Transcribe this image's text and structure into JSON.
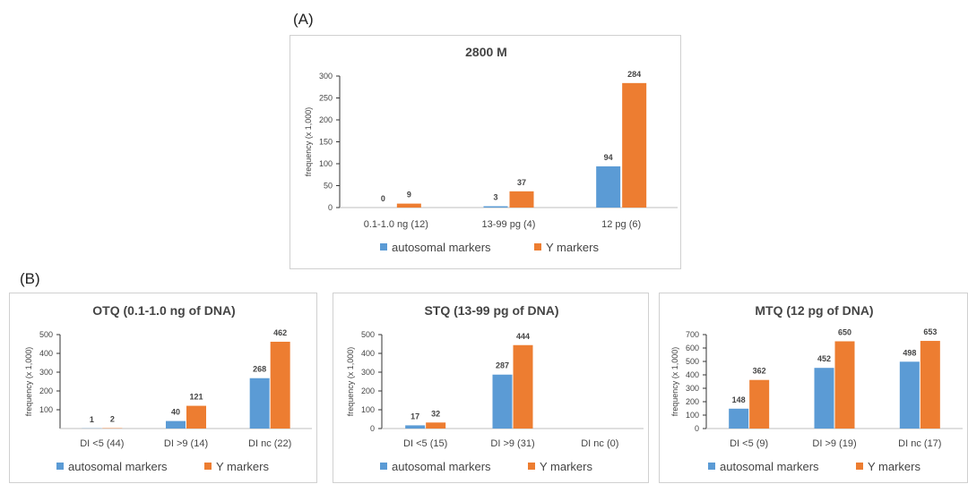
{
  "panel_labels": {
    "a": "(A)",
    "b": "(B)"
  },
  "colors": {
    "autosomal": "#5b9bd5",
    "y": "#ed7d31"
  },
  "chart_data": [
    {
      "id": "chart-a",
      "type": "bar",
      "title": "2800 M",
      "ylabel": "frequency (x 1,000)",
      "ylim": [
        0,
        300
      ],
      "yticks": [
        0,
        50,
        100,
        150,
        200,
        250,
        300
      ],
      "categories": [
        "0.1-1.0 ng (12)",
        "13-99 pg (4)",
        "12 pg (6)"
      ],
      "series": [
        {
          "name": "autosomal markers",
          "values": [
            0,
            3,
            94
          ]
        },
        {
          "name": "Y markers",
          "values": [
            9,
            37,
            284
          ]
        }
      ],
      "legend": "bottom"
    },
    {
      "id": "chart-b1",
      "type": "bar",
      "title": "OTQ (0.1-1.0 ng of DNA)",
      "ylabel": "frequency (x 1,000)",
      "ylim": [
        0,
        500
      ],
      "yticks": [
        100,
        200,
        300,
        400,
        500
      ],
      "categories": [
        "DI <5 (44)",
        "DI >9 (14)",
        "DI nc (22)"
      ],
      "series": [
        {
          "name": "autosomal markers",
          "values": [
            1,
            40,
            268
          ]
        },
        {
          "name": "Y markers",
          "values": [
            2,
            121,
            462
          ]
        }
      ],
      "legend": "bottom"
    },
    {
      "id": "chart-b2",
      "type": "bar",
      "title": "STQ (13-99 pg of DNA)",
      "ylabel": "frequency (x 1,000)",
      "ylim": [
        0,
        500
      ],
      "yticks": [
        0,
        100,
        200,
        300,
        400,
        500
      ],
      "categories": [
        "DI <5 (15)",
        "DI >9 (31)",
        "DI nc (0)"
      ],
      "series": [
        {
          "name": "autosomal markers",
          "values": [
            17,
            287,
            null
          ]
        },
        {
          "name": "Y markers",
          "values": [
            32,
            444,
            null
          ]
        }
      ],
      "legend": "bottom"
    },
    {
      "id": "chart-b3",
      "type": "bar",
      "title": "MTQ (12 pg of DNA)",
      "ylabel": "frequency (x 1,000)",
      "ylim": [
        0,
        700
      ],
      "yticks": [
        0,
        100,
        200,
        300,
        400,
        500,
        600,
        700
      ],
      "categories": [
        "DI <5 (9)",
        "DI >9 (19)",
        "DI nc (17)"
      ],
      "series": [
        {
          "name": "autosomal markers",
          "values": [
            148,
            452,
            498
          ]
        },
        {
          "name": "Y markers",
          "values": [
            362,
            650,
            653
          ]
        }
      ],
      "legend": "bottom"
    }
  ]
}
